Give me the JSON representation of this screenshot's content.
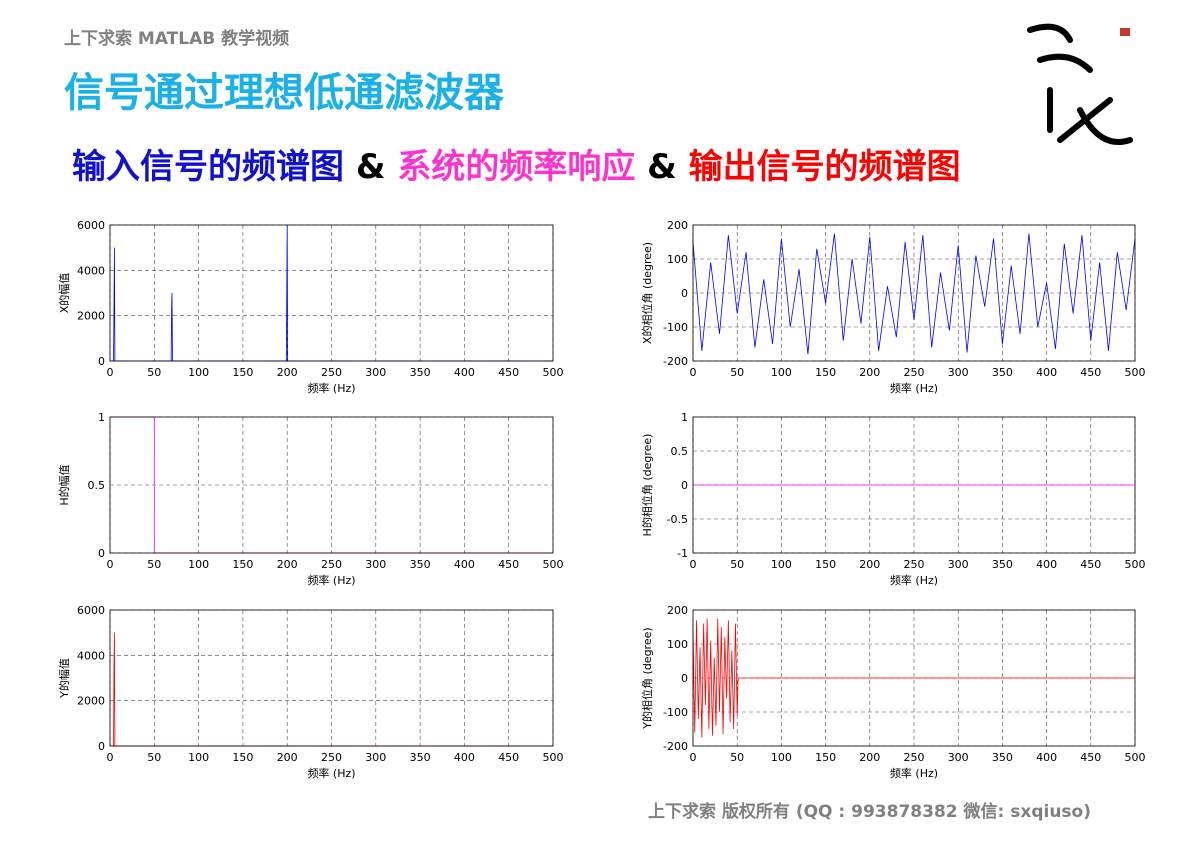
{
  "header": {
    "course": "上下求索 MATLAB 教学视频",
    "title": "信号通过理想低通滤波器",
    "subtitle_parts": [
      {
        "text": "输入信号的频谱图",
        "color": "#1010d0"
      },
      {
        "text": " & ",
        "color": "#000000"
      },
      {
        "text": "系统的频率响应",
        "color": "#ff33cc"
      },
      {
        "text": " & ",
        "color": "#000000"
      },
      {
        "text": "输出信号的频谱图",
        "color": "#ff0000"
      }
    ]
  },
  "footer": "上下求索 版权所有 (QQ : 993878382   微信: sxqiuso)",
  "chart_data": [
    {
      "type": "line",
      "xlabel": "频率 (Hz)",
      "ylabel": "X的幅值",
      "grid": true,
      "xlim": [
        0,
        500
      ],
      "xticks": [
        0,
        50,
        100,
        150,
        200,
        250,
        300,
        350,
        400,
        450,
        500
      ],
      "ylim": [
        0,
        6000
      ],
      "yticks": [
        0,
        2000,
        4000,
        6000
      ],
      "series": [
        {
          "color": "#0000ff",
          "x": [
            0,
            4,
            4.5,
            5,
            5.5,
            69,
            69.5,
            70,
            70.5,
            199,
            199.5,
            200,
            200.5,
            500
          ],
          "values": [
            0,
            0,
            2400,
            5000,
            0,
            0,
            2300,
            3000,
            0,
            0,
            3000,
            6000,
            0,
            0
          ]
        }
      ]
    },
    {
      "type": "line",
      "xlabel": "频率 (Hz)",
      "ylabel": "X的相位角 (degree)",
      "grid": true,
      "xlim": [
        0,
        500
      ],
      "xticks": [
        0,
        50,
        100,
        150,
        200,
        250,
        300,
        350,
        400,
        450,
        500
      ],
      "ylim": [
        -200,
        200
      ],
      "yticks": [
        -200,
        -100,
        0,
        100,
        200
      ],
      "series": [
        {
          "color": "#0000ff",
          "x": [
            0,
            10,
            20,
            30,
            40,
            50,
            60,
            70,
            80,
            90,
            100,
            110,
            120,
            130,
            140,
            150,
            160,
            170,
            180,
            190,
            200,
            210,
            220,
            230,
            240,
            250,
            260,
            270,
            280,
            290,
            300,
            310,
            320,
            330,
            340,
            350,
            360,
            370,
            380,
            390,
            400,
            410,
            420,
            430,
            440,
            450,
            460,
            470,
            480,
            490,
            500
          ],
          "values": [
            150,
            -170,
            90,
            -120,
            170,
            -60,
            120,
            -160,
            40,
            -150,
            160,
            -100,
            70,
            -180,
            130,
            -30,
            175,
            -140,
            100,
            -90,
            165,
            -170,
            20,
            -130,
            150,
            -80,
            170,
            -160,
            60,
            -110,
            140,
            -175,
            110,
            -40,
            160,
            -150,
            80,
            -120,
            175,
            -100,
            30,
            -165,
            145,
            -60,
            170,
            -140,
            90,
            -170,
            120,
            -50,
            160
          ]
        }
      ]
    },
    {
      "type": "line",
      "xlabel": "频率 (Hz)",
      "ylabel": "H的幅值",
      "grid": true,
      "xlim": [
        0,
        500
      ],
      "xticks": [
        0,
        50,
        100,
        150,
        200,
        250,
        300,
        350,
        400,
        450,
        500
      ],
      "ylim": [
        0,
        1
      ],
      "yticks": [
        0,
        0.5,
        1
      ],
      "series": [
        {
          "color": "#ff00ff",
          "x": [
            0,
            50,
            50,
            500
          ],
          "values": [
            1,
            1,
            0,
            0
          ]
        }
      ]
    },
    {
      "type": "line",
      "xlabel": "频率 (Hz)",
      "ylabel": "H的相位角 (degree)",
      "grid": true,
      "xlim": [
        0,
        500
      ],
      "xticks": [
        0,
        50,
        100,
        150,
        200,
        250,
        300,
        350,
        400,
        450,
        500
      ],
      "ylim": [
        -1,
        1
      ],
      "yticks": [
        -1,
        -0.5,
        0,
        0.5,
        1
      ],
      "series": [
        {
          "color": "#ff00ff",
          "x": [
            0,
            500
          ],
          "values": [
            0,
            0
          ]
        }
      ]
    },
    {
      "type": "line",
      "xlabel": "频率 (Hz)",
      "ylabel": "Y的幅值",
      "grid": true,
      "xlim": [
        0,
        500
      ],
      "xticks": [
        0,
        50,
        100,
        150,
        200,
        250,
        300,
        350,
        400,
        450,
        500
      ],
      "ylim": [
        0,
        6000
      ],
      "yticks": [
        0,
        2000,
        4000,
        6000
      ],
      "series": [
        {
          "color": "#ff0000",
          "x": [
            0,
            4,
            4.5,
            5,
            5.5,
            50,
            500
          ],
          "values": [
            0,
            0,
            3600,
            5000,
            0,
            0,
            0
          ]
        }
      ]
    },
    {
      "type": "line",
      "xlabel": "频率 (Hz)",
      "ylabel": "Y的相位角 (degree)",
      "grid": true,
      "xlim": [
        0,
        500
      ],
      "xticks": [
        0,
        50,
        100,
        150,
        200,
        250,
        300,
        350,
        400,
        450,
        500
      ],
      "ylim": [
        -200,
        200
      ],
      "yticks": [
        -200,
        -100,
        0,
        100,
        200
      ],
      "series": [
        {
          "color": "#ff0000",
          "x": [
            0,
            2,
            4,
            6,
            8,
            10,
            12,
            14,
            16,
            18,
            20,
            22,
            24,
            26,
            28,
            30,
            32,
            34,
            36,
            38,
            40,
            42,
            44,
            46,
            48,
            50,
            51,
            500
          ],
          "values": [
            140,
            -160,
            170,
            -120,
            90,
            -175,
            160,
            -80,
            175,
            -150,
            110,
            -170,
            60,
            -140,
            175,
            -100,
            150,
            -165,
            120,
            -60,
            170,
            -130,
            80,
            -150,
            160,
            -110,
            0,
            0
          ]
        }
      ]
    }
  ]
}
